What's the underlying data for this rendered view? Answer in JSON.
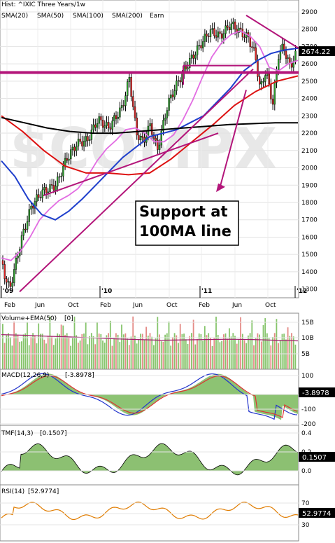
{
  "header": {
    "title": "Hist: ^IXIC Three Years/1w"
  },
  "colors": {
    "sma20": "#e26ce2",
    "sma50": "#1f3fcc",
    "sma100": "#dd1111",
    "sma200": "#000000",
    "earn": "#cc0000",
    "trend": "#b3157a",
    "volume": "#86c46b",
    "volume_red": "#e48a86",
    "macd": "#2233cc",
    "signal": "#dd3333",
    "hist_pos": "#79b85a",
    "hist_neg": "#eba7a0",
    "rsi": "#e07c00",
    "tmf": "#6fb04f",
    "watermark": "#e6e6e6",
    "label_bg": "#000000",
    "label_fg": "#ffffff"
  },
  "legend": [
    {
      "text": "SMA(20)",
      "color": "#e26ce2"
    },
    {
      "text": "SMA(50)",
      "color": "#1f3fcc"
    },
    {
      "text": "SMA(100)",
      "color": "#dd1111"
    },
    {
      "text": "SMA(200)",
      "color": "#000000"
    },
    {
      "text": "Earn",
      "color": "#cc0000"
    }
  ],
  "watermark": "$COMPX",
  "annotation": {
    "line1": "Support at",
    "line2": "100MA line"
  },
  "chart_data": [
    {
      "type": "line",
      "title": "Hist: ^IXIC Three Years/1w",
      "ylim": [
        1250,
        2920
      ],
      "y_ticks": [
        1300,
        1400,
        1500,
        1600,
        1700,
        1800,
        1900,
        2000,
        2100,
        2200,
        2300,
        2400,
        2500,
        2600,
        2700,
        2800,
        2900
      ],
      "x_ticks": [
        "Feb",
        "Jun",
        "Oct",
        "Feb",
        "Jun",
        "Oct",
        "Feb",
        "Jun",
        "Oct"
      ],
      "year_marks": [
        "'09",
        "'10",
        "'11",
        "'12"
      ],
      "last_value": "2674.22",
      "series": [
        {
          "name": "SMA(20)",
          "values": [
            1480,
            1465,
            1520,
            1600,
            1700,
            1760,
            1810,
            1840,
            1880,
            1950,
            2040,
            2110,
            2160,
            2220,
            2230,
            2200,
            2150,
            2150,
            2190,
            2280,
            2390,
            2520,
            2640,
            2720,
            2770,
            2790,
            2760,
            2700,
            2580,
            2560,
            2600,
            2620
          ]
        },
        {
          "name": "SMA(50)",
          "values": [
            2040,
            1950,
            1820,
            1730,
            1700,
            1750,
            1820,
            1900,
            1980,
            2060,
            2120,
            2180,
            2200,
            2220,
            2260,
            2300,
            2380,
            2460,
            2560,
            2620,
            2660,
            2680,
            2690
          ]
        },
        {
          "name": "SMA(100)",
          "values": [
            2300,
            2210,
            2100,
            2010,
            1970,
            1970,
            1960,
            1970,
            2050,
            2150,
            2250,
            2360,
            2440,
            2500,
            2530
          ]
        },
        {
          "name": "SMA(200)",
          "values": [
            2290,
            2260,
            2230,
            2210,
            2200,
            2200,
            2210,
            2220,
            2230,
            2240,
            2250,
            2255,
            2260,
            2260
          ]
        }
      ]
    },
    {
      "type": "bar",
      "title": "Volume+EMA(50)",
      "label_value": "[0]",
      "ylim": [
        0,
        17
      ],
      "y_ticks": [
        "5B",
        "10B",
        "15B"
      ],
      "ema_values": [
        10.5,
        10.3,
        10.0,
        9.8,
        9.5,
        9.2,
        9.0,
        8.8,
        8.9,
        9.0,
        9.1,
        9.0,
        8.8,
        8.6
      ]
    },
    {
      "type": "line",
      "title": "MACD(12,26,9)",
      "label_value": "[-3.8978]",
      "ylim": [
        -200,
        120
      ],
      "y_ticks": [
        "100",
        "0",
        "-100",
        "-200"
      ],
      "last_value": "-3.8978"
    },
    {
      "type": "area",
      "title": "TMF(14,3)",
      "label_value": "[0.1507]",
      "ylim": [
        -0.12,
        0.42
      ],
      "y_ticks": [
        "0.4",
        "0.2",
        "0.0"
      ],
      "last_value": "0.1507"
    },
    {
      "type": "line",
      "title": "RSI(14)",
      "label_value": "[52.9774]",
      "ylim": [
        10,
        90
      ],
      "y_ticks": [
        "70",
        "50",
        "30"
      ],
      "last_value": "52.9774"
    }
  ]
}
